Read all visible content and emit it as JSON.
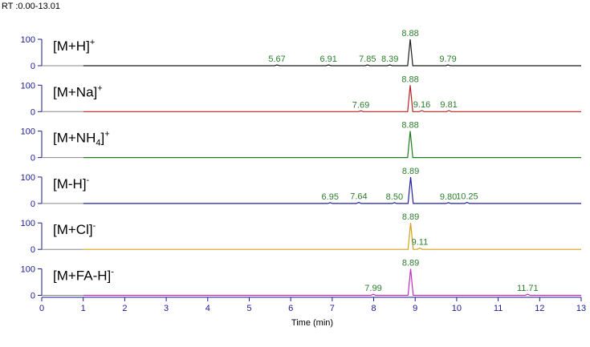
{
  "header": {
    "rt_range": "RT :0.00-13.01"
  },
  "chart_data": {
    "type": "line",
    "title": "",
    "xlabel": "Time (min)",
    "ylabel": "",
    "xlim": [
      0,
      13
    ],
    "ylim": [
      0,
      100
    ],
    "x_ticks": [
      "0",
      "1",
      "2",
      "3",
      "4",
      "5",
      "6",
      "7",
      "8",
      "9",
      "10",
      "11",
      "12",
      "13"
    ],
    "y_ticks": [
      "0",
      "100"
    ],
    "panels": [
      {
        "ion_main": "[M+H]",
        "ion_sub": "",
        "ion_tail": "",
        "ion_sup": "+",
        "color": "#1a1a1a",
        "main_peak": 8.88,
        "peaks": [
          {
            "rt": 5.67,
            "label": "5.67",
            "height": 3
          },
          {
            "rt": 6.91,
            "label": "6.91",
            "height": 3
          },
          {
            "rt": 7.85,
            "label": "7.85",
            "height": 3
          },
          {
            "rt": 8.39,
            "label": "8.39",
            "height": 3
          },
          {
            "rt": 8.88,
            "label": "8.88",
            "height": 100
          },
          {
            "rt": 9.79,
            "label": "9.79",
            "height": 3
          }
        ]
      },
      {
        "ion_main": "[M+Na]",
        "ion_sub": "",
        "ion_tail": "",
        "ion_sup": "+",
        "color": "#b22222",
        "main_peak": 8.88,
        "peaks": [
          {
            "rt": 7.69,
            "label": "7.69",
            "height": 3
          },
          {
            "rt": 8.88,
            "label": "8.88",
            "height": 100
          },
          {
            "rt": 9.16,
            "label": "9.16",
            "height": 4
          },
          {
            "rt": 9.81,
            "label": "9.81",
            "height": 4
          }
        ]
      },
      {
        "ion_main": "[M+NH",
        "ion_sub": "4",
        "ion_tail": "]",
        "ion_sup": "+",
        "color": "#1f7a1f",
        "main_peak": 8.88,
        "peaks": [
          {
            "rt": 8.88,
            "label": "8.88",
            "height": 100
          }
        ]
      },
      {
        "ion_main": "[M-H]",
        "ion_sub": "",
        "ion_tail": "",
        "ion_sup": "-",
        "color": "#1f1f9e",
        "main_peak": 8.89,
        "peaks": [
          {
            "rt": 6.95,
            "label": "6.95",
            "height": 3
          },
          {
            "rt": 7.64,
            "label": "7.64",
            "height": 4
          },
          {
            "rt": 8.5,
            "label": "8.50",
            "height": 3
          },
          {
            "rt": 8.89,
            "label": "8.89",
            "height": 100
          },
          {
            "rt": 9.8,
            "label": "9.80",
            "height": 3
          },
          {
            "rt": 10.25,
            "label": "10.25",
            "height": 4
          }
        ]
      },
      {
        "ion_main": "[M+Cl]",
        "ion_sub": "",
        "ion_tail": "",
        "ion_sup": "-",
        "color": "#d4a017",
        "main_peak": 8.89,
        "peaks": [
          {
            "rt": 8.89,
            "label": "8.89",
            "height": 100
          },
          {
            "rt": 9.11,
            "label": "9.11",
            "height": 5
          }
        ]
      },
      {
        "ion_main": "[M+FA-H]",
        "ion_sub": "",
        "ion_tail": "",
        "ion_sup": "-",
        "color": "#c02cc0",
        "main_peak": 8.89,
        "peaks": [
          {
            "rt": 7.99,
            "label": "7.99",
            "height": 4
          },
          {
            "rt": 8.89,
            "label": "8.89",
            "height": 100
          },
          {
            "rt": 11.71,
            "label": "11.71",
            "height": 4
          }
        ]
      }
    ]
  }
}
